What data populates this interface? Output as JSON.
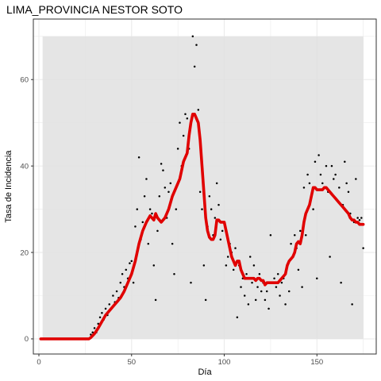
{
  "chart_data": {
    "type": "scatter",
    "title": "LIMA_PROVINCIA NESTOR SOTO",
    "xlabel": "Día",
    "ylabel": "Tasa de Incidencia",
    "xlim": [
      -3,
      182
    ],
    "ylim": [
      -3.5,
      74
    ],
    "x_ticks": [
      0,
      50,
      100,
      150
    ],
    "x_tick_labels": [
      "0",
      "50",
      "100",
      "150"
    ],
    "y_ticks": [
      0,
      20,
      40,
      60
    ],
    "y_tick_labels": [
      "0",
      "20",
      "40",
      "60"
    ],
    "grid": true,
    "legend": "none",
    "band": {
      "x": [
        2,
        175
      ],
      "y": [
        0,
        70
      ]
    },
    "colors": {
      "band": "#e0e0e0",
      "points": "#000000",
      "smooth": "#e00000",
      "frame": "#333333",
      "grid": "#ebebeb"
    },
    "series": [
      {
        "type": "scatter",
        "points": [
          [
            1,
            0
          ],
          [
            2,
            0
          ],
          [
            3,
            0
          ],
          [
            4,
            0
          ],
          [
            5,
            0
          ],
          [
            6,
            0
          ],
          [
            7,
            0
          ],
          [
            8,
            0
          ],
          [
            9,
            0
          ],
          [
            10,
            0
          ],
          [
            11,
            0
          ],
          [
            12,
            0
          ],
          [
            13,
            0
          ],
          [
            14,
            0
          ],
          [
            15,
            0
          ],
          [
            16,
            0
          ],
          [
            17,
            0
          ],
          [
            18,
            0
          ],
          [
            19,
            0
          ],
          [
            20,
            0
          ],
          [
            21,
            0
          ],
          [
            22,
            0
          ],
          [
            23,
            0
          ],
          [
            24,
            0
          ],
          [
            25,
            0
          ],
          [
            26,
            0
          ],
          [
            27,
            0
          ],
          [
            28,
            1
          ],
          [
            29,
            1.5
          ],
          [
            30,
            2.5
          ],
          [
            31,
            1.5
          ],
          [
            32,
            3.5
          ],
          [
            33,
            5
          ],
          [
            34,
            6
          ],
          [
            35,
            4.5
          ],
          [
            36,
            7
          ],
          [
            37,
            5.5
          ],
          [
            38,
            8
          ],
          [
            39,
            7
          ],
          [
            40,
            10
          ],
          [
            41,
            8.5
          ],
          [
            42,
            11
          ],
          [
            43,
            9.5
          ],
          [
            44,
            13
          ],
          [
            45,
            15
          ],
          [
            46,
            12
          ],
          [
            47,
            16
          ],
          [
            48,
            14
          ],
          [
            49,
            17.5
          ],
          [
            50,
            18
          ],
          [
            51,
            13
          ],
          [
            52,
            26
          ],
          [
            53,
            30
          ],
          [
            54,
            42
          ],
          [
            55,
            23
          ],
          [
            56,
            27
          ],
          [
            57,
            33
          ],
          [
            58,
            37
          ],
          [
            59,
            22
          ],
          [
            60,
            30
          ],
          [
            61,
            29
          ],
          [
            62,
            17
          ],
          [
            63,
            9
          ],
          [
            64,
            25
          ],
          [
            65,
            33
          ],
          [
            66,
            40.5
          ],
          [
            67,
            39
          ],
          [
            68,
            35
          ],
          [
            69,
            28
          ],
          [
            70,
            34
          ],
          [
            71,
            36
          ],
          [
            72,
            22
          ],
          [
            73,
            15
          ],
          [
            74,
            30
          ],
          [
            75,
            44
          ],
          [
            76,
            50
          ],
          [
            77,
            40
          ],
          [
            78,
            47
          ],
          [
            79,
            52
          ],
          [
            80,
            51
          ],
          [
            81,
            44
          ],
          [
            82,
            13
          ],
          [
            83,
            70
          ],
          [
            84,
            63
          ],
          [
            85,
            68
          ],
          [
            86,
            53
          ],
          [
            87,
            34
          ],
          [
            88,
            30
          ],
          [
            89,
            17
          ],
          [
            90,
            9
          ],
          [
            91,
            26
          ],
          [
            92,
            33
          ],
          [
            93,
            30
          ],
          [
            94,
            24
          ],
          [
            95,
            28
          ],
          [
            96,
            36
          ],
          [
            97,
            31
          ],
          [
            98,
            23
          ],
          [
            99,
            25
          ],
          [
            100,
            27
          ],
          [
            101,
            17
          ],
          [
            102,
            19
          ],
          [
            103,
            22
          ],
          [
            104,
            20
          ],
          [
            105,
            16
          ],
          [
            106,
            21
          ],
          [
            107,
            5
          ],
          [
            108,
            17
          ],
          [
            109,
            12
          ],
          [
            110,
            14
          ],
          [
            111,
            10
          ],
          [
            112,
            15
          ],
          [
            113,
            8
          ],
          [
            114,
            19
          ],
          [
            115,
            13
          ],
          [
            116,
            17
          ],
          [
            117,
            9
          ],
          [
            118,
            12
          ],
          [
            119,
            15
          ],
          [
            120,
            11
          ],
          [
            121,
            13
          ],
          [
            122,
            9
          ],
          [
            123,
            11
          ],
          [
            124,
            7
          ],
          [
            125,
            24
          ],
          [
            126,
            13
          ],
          [
            127,
            14
          ],
          [
            128,
            12
          ],
          [
            129,
            15
          ],
          [
            130,
            10
          ],
          [
            131,
            13
          ],
          [
            132,
            14
          ],
          [
            133,
            8
          ],
          [
            134,
            17
          ],
          [
            135,
            11
          ],
          [
            136,
            22
          ],
          [
            137,
            19
          ],
          [
            138,
            24
          ],
          [
            139,
            21
          ],
          [
            140,
            16
          ],
          [
            141,
            25
          ],
          [
            142,
            12
          ],
          [
            143,
            35
          ],
          [
            144,
            24
          ],
          [
            145,
            38
          ],
          [
            146,
            36
          ],
          [
            147,
            33
          ],
          [
            148,
            30
          ],
          [
            149,
            41
          ],
          [
            150,
            14
          ],
          [
            151,
            42.5
          ],
          [
            152,
            38
          ],
          [
            153,
            36
          ],
          [
            154,
            35
          ],
          [
            155,
            40
          ],
          [
            156,
            34
          ],
          [
            157,
            19
          ],
          [
            158,
            40
          ],
          [
            159,
            37
          ],
          [
            160,
            38
          ],
          [
            161,
            32
          ],
          [
            162,
            35
          ],
          [
            163,
            13
          ],
          [
            164,
            31
          ],
          [
            165,
            41
          ],
          [
            166,
            36
          ],
          [
            167,
            34
          ],
          [
            168,
            29
          ],
          [
            169,
            8
          ],
          [
            170,
            27
          ],
          [
            171,
            37
          ],
          [
            172,
            28
          ],
          [
            173,
            27.5
          ],
          [
            174,
            28
          ],
          [
            175,
            21
          ]
        ]
      },
      {
        "type": "line",
        "points": [
          [
            1,
            0
          ],
          [
            27,
            0
          ],
          [
            28,
            0.3
          ],
          [
            30,
            1.2
          ],
          [
            32,
            2.5
          ],
          [
            34,
            4
          ],
          [
            36,
            5.5
          ],
          [
            38,
            6.5
          ],
          [
            40,
            7.5
          ],
          [
            42,
            8.5
          ],
          [
            44,
            9.5
          ],
          [
            46,
            11
          ],
          [
            48,
            13
          ],
          [
            50,
            15
          ],
          [
            52,
            18
          ],
          [
            54,
            22
          ],
          [
            56,
            25
          ],
          [
            58,
            27
          ],
          [
            60,
            28.5
          ],
          [
            62,
            27.5
          ],
          [
            63,
            29
          ],
          [
            64,
            28
          ],
          [
            66,
            27
          ],
          [
            68,
            28
          ],
          [
            70,
            30
          ],
          [
            72,
            33
          ],
          [
            74,
            35
          ],
          [
            76,
            37
          ],
          [
            78,
            41
          ],
          [
            80,
            43
          ],
          [
            81,
            47
          ],
          [
            82,
            50
          ],
          [
            83,
            52
          ],
          [
            84,
            52
          ],
          [
            85,
            51
          ],
          [
            86,
            50
          ],
          [
            87,
            46
          ],
          [
            88,
            40
          ],
          [
            89,
            34
          ],
          [
            90,
            28
          ],
          [
            91,
            25
          ],
          [
            92,
            23.5
          ],
          [
            93,
            23
          ],
          [
            94,
            23
          ],
          [
            95,
            24
          ],
          [
            96,
            27.5
          ],
          [
            97,
            27.5
          ],
          [
            98,
            27
          ],
          [
            99,
            27
          ],
          [
            100,
            27
          ],
          [
            101,
            25
          ],
          [
            102,
            23
          ],
          [
            103,
            21
          ],
          [
            104,
            19
          ],
          [
            105,
            18
          ],
          [
            106,
            17
          ],
          [
            107,
            18
          ],
          [
            108,
            18
          ],
          [
            109,
            16
          ],
          [
            110,
            15
          ],
          [
            111,
            14
          ],
          [
            112,
            14
          ],
          [
            113,
            14
          ],
          [
            114,
            14
          ],
          [
            115,
            14
          ],
          [
            116,
            14
          ],
          [
            117,
            13.5
          ],
          [
            118,
            14
          ],
          [
            119,
            14
          ],
          [
            120,
            13.5
          ],
          [
            121,
            13.5
          ],
          [
            122,
            12.5
          ],
          [
            123,
            13
          ],
          [
            124,
            13
          ],
          [
            125,
            13
          ],
          [
            126,
            13
          ],
          [
            127,
            13
          ],
          [
            128,
            13
          ],
          [
            129,
            13
          ],
          [
            130,
            13.5
          ],
          [
            131,
            14
          ],
          [
            132,
            14.5
          ],
          [
            133,
            15
          ],
          [
            134,
            17
          ],
          [
            135,
            18
          ],
          [
            136,
            18.5
          ],
          [
            137,
            19
          ],
          [
            138,
            20
          ],
          [
            139,
            22
          ],
          [
            140,
            22.5
          ],
          [
            141,
            22
          ],
          [
            142,
            24
          ],
          [
            143,
            27
          ],
          [
            144,
            29
          ],
          [
            145,
            30
          ],
          [
            146,
            31
          ],
          [
            147,
            33
          ],
          [
            148,
            35
          ],
          [
            149,
            35
          ],
          [
            150,
            34.5
          ],
          [
            151,
            34.5
          ],
          [
            152,
            34.5
          ],
          [
            153,
            34.5
          ],
          [
            154,
            35
          ],
          [
            155,
            35
          ],
          [
            156,
            34.5
          ],
          [
            157,
            34
          ],
          [
            158,
            33.5
          ],
          [
            159,
            33
          ],
          [
            160,
            32.5
          ],
          [
            161,
            32
          ],
          [
            162,
            31.5
          ],
          [
            163,
            31
          ],
          [
            164,
            30.5
          ],
          [
            165,
            30
          ],
          [
            166,
            29.5
          ],
          [
            167,
            29
          ],
          [
            168,
            28
          ],
          [
            169,
            27.5
          ],
          [
            170,
            27.5
          ],
          [
            171,
            27
          ],
          [
            172,
            27
          ],
          [
            173,
            26.5
          ],
          [
            174,
            26.5
          ],
          [
            175,
            26.5
          ]
        ]
      }
    ]
  }
}
